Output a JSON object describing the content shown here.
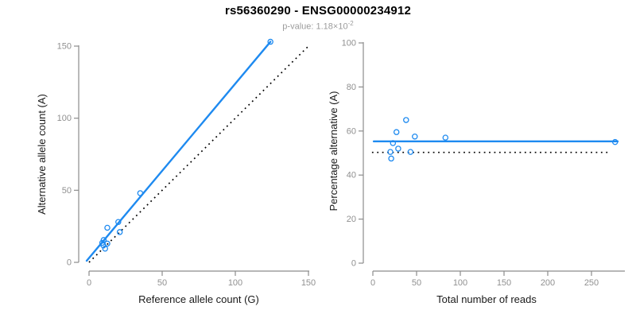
{
  "header": {
    "title": "rs56360290 - ENSG00000234912",
    "subtitle_prefix": "p-value: 1.18×10",
    "subtitle_exponent": "-2"
  },
  "colors": {
    "accent_blue": "#1E8AF0",
    "axis_gray": "#8C8C8C",
    "tick_label_gray": "#909090",
    "dotted_black": "#000000"
  },
  "chart_data": [
    {
      "type": "scatter",
      "panel": "left",
      "xlabel": "Reference allele count (G)",
      "ylabel": "Alternative allele count (A)",
      "xlim": [
        0,
        150
      ],
      "ylim": [
        0,
        150
      ],
      "xticks": [
        0,
        50,
        100,
        150
      ],
      "yticks": [
        0,
        50,
        100,
        150
      ],
      "grid": false,
      "points": [
        [
          124,
          153
        ],
        [
          35,
          48
        ],
        [
          20,
          28
        ],
        [
          12.5,
          24
        ],
        [
          21,
          21
        ],
        [
          10,
          15.5
        ],
        [
          12.5,
          13
        ],
        [
          9,
          13.5
        ],
        [
          9.8,
          11.8
        ],
        [
          11,
          9.5
        ]
      ],
      "fit_line": {
        "from": [
          -1.6,
          1.1
        ],
        "to": [
          124,
          153
        ],
        "style": "solid"
      },
      "reference_line": {
        "from": [
          0,
          0
        ],
        "to": [
          150,
          150
        ],
        "style": "dotted"
      }
    },
    {
      "type": "scatter",
      "panel": "right",
      "xlabel": "Total number of reads",
      "ylabel": "Percentage alternative (A)",
      "xlim": [
        0,
        250
      ],
      "ylim": [
        0,
        100
      ],
      "xticks": [
        0,
        50,
        100,
        150,
        200,
        250
      ],
      "yticks": [
        0,
        20,
        40,
        60,
        80,
        100
      ],
      "grid": false,
      "points": [
        [
          38,
          65
        ],
        [
          27,
          59.5
        ],
        [
          48,
          57.5
        ],
        [
          83,
          57
        ],
        [
          23,
          54.5
        ],
        [
          29,
          52
        ],
        [
          20,
          50.5
        ],
        [
          43,
          50.5
        ],
        [
          21,
          47.5
        ],
        [
          277,
          55
        ]
      ],
      "fit_line": {
        "from": [
          1,
          55.3
        ],
        "to": [
          280,
          55.3
        ],
        "style": "solid"
      },
      "reference_line": {
        "from": [
          -1,
          50.3
        ],
        "to": [
          272,
          50.3
        ],
        "style": "dotted"
      }
    }
  ]
}
